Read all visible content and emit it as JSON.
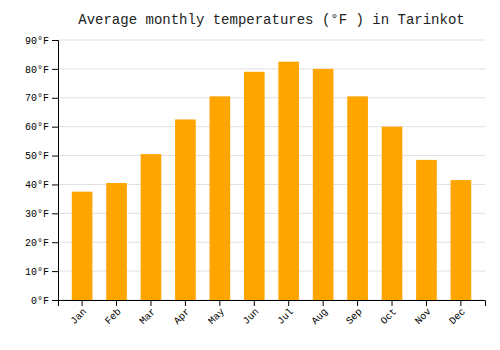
{
  "chart_data": {
    "type": "bar",
    "title": "Average monthly temperatures (°F ) in Tarinkot",
    "categories": [
      "Jan",
      "Feb",
      "Mar",
      "Apr",
      "May",
      "Jun",
      "Jul",
      "Aug",
      "Sep",
      "Oct",
      "Nov",
      "Dec"
    ],
    "values": [
      37.5,
      40.5,
      50.5,
      62.5,
      70.5,
      79,
      82.5,
      80,
      70.5,
      60,
      48.5,
      41.5
    ],
    "color": "#FFA500",
    "ylim": [
      0,
      90
    ],
    "yticks": [
      {
        "value": 0,
        "label": "0°F"
      },
      {
        "value": 10,
        "label": "10°F"
      },
      {
        "value": 20,
        "label": "20°F"
      },
      {
        "value": 30,
        "label": "30°F"
      },
      {
        "value": 40,
        "label": "40°F"
      },
      {
        "value": 50,
        "label": "50°F"
      },
      {
        "value": 60,
        "label": "60°F"
      },
      {
        "value": 70,
        "label": "70°F"
      },
      {
        "value": 80,
        "label": "80°F"
      },
      {
        "value": 90,
        "label": "90°F"
      }
    ],
    "grid": true
  }
}
